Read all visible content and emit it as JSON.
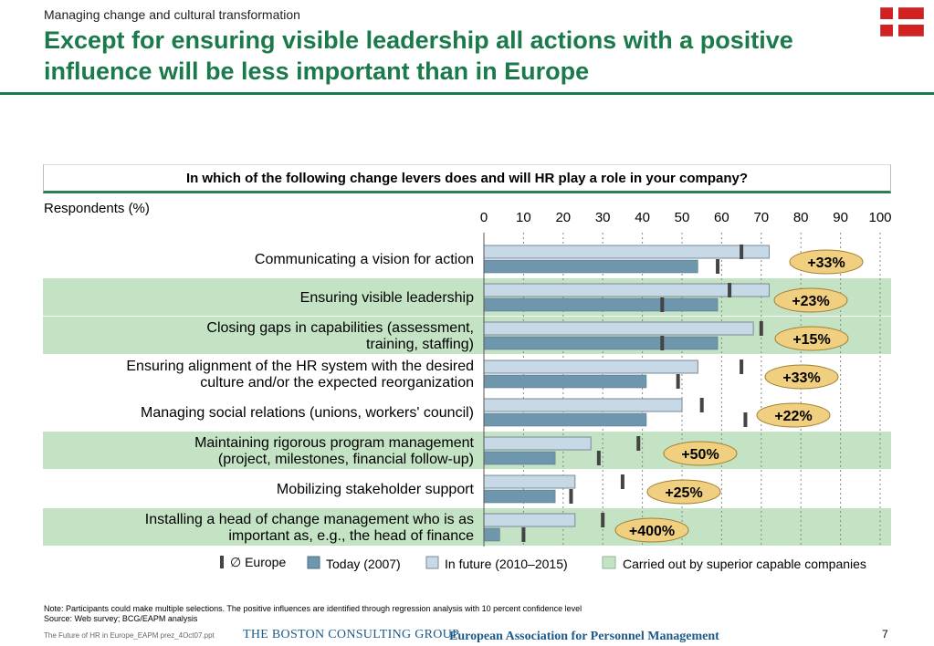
{
  "header": {
    "kicker": "Managing change and cultural transformation",
    "title": "Except for ensuring visible leadership all actions with a positive influence will be less important than in Europe"
  },
  "colors": {
    "accent": "#1b7a4a",
    "today": "#6e97ae",
    "future": "#c7d8e6",
    "superior": "#c4e3c4",
    "bubble": "#f0d080"
  },
  "question": "In which of the following change levers does and will HR play a role in your company?",
  "respondents_label": "Respondents (%)",
  "footer": {
    "note": "Note: Participants could make multiple selections. The positive influences are identified through regression analysis with 10 percent confidence level",
    "source": "Source: Web survey; BCG/EAPM analysis",
    "file": "The Future of HR in Europe_EAPM prez_4Oct07.ppt",
    "bcg": "THE BOSTON CONSULTING GROUP",
    "eapm": "European Association for Personnel Management",
    "page": "7"
  },
  "chart_data": {
    "type": "bar",
    "orientation": "horizontal",
    "xlim": [
      0,
      100
    ],
    "ticks": [
      "0",
      "10",
      "20",
      "30",
      "40",
      "50",
      "60",
      "70",
      "80",
      "90",
      "100"
    ],
    "categories": [
      [
        "Communicating a vision for action"
      ],
      [
        "Ensuring visible leadership"
      ],
      [
        "Closing gaps in capabilities (assessment,",
        "training, staffing)"
      ],
      [
        "Ensuring alignment of the HR system with the desired",
        "culture and/or the expected reorganization"
      ],
      [
        "Managing social relations (unions, workers' council)"
      ],
      [
        "Maintaining rigorous program management",
        "(project, milestones, financial follow-up)"
      ],
      [
        "Mobilizing stakeholder support"
      ],
      [
        "Installing a head of change management who is as",
        "important as, e.g., the head of finance"
      ]
    ],
    "superior_capable": [
      false,
      true,
      true,
      false,
      false,
      true,
      false,
      true
    ],
    "series": [
      {
        "name": "In future (2010–2015)",
        "values": [
          72,
          72,
          68,
          54,
          50,
          27,
          23,
          23
        ]
      },
      {
        "name": "Today (2007)",
        "values": [
          54,
          59,
          59,
          41,
          41,
          18,
          18,
          4
        ]
      },
      {
        "name": "Europe (future)",
        "values": [
          65,
          62,
          70,
          65,
          55,
          39,
          35,
          30
        ]
      },
      {
        "name": "Europe (today)",
        "values": [
          59,
          45,
          45,
          49,
          66,
          29,
          22,
          10
        ]
      }
    ],
    "bubbles": [
      "+33%",
      "+23%",
      "+15%",
      "+33%",
      "+22%",
      "+50%",
      "+25%",
      "+400%"
    ],
    "legend": [
      {
        "key": "europe",
        "label": "∅ Europe"
      },
      {
        "key": "today",
        "label": "Today (2007)"
      },
      {
        "key": "future",
        "label": "In future (2010–2015)"
      },
      {
        "key": "superior",
        "label": "Carried out by superior capable companies"
      }
    ]
  }
}
